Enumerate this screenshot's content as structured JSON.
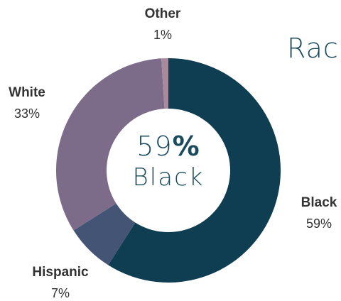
{
  "header": {
    "title_fragment": "Rac"
  },
  "center_label": {
    "value": "59",
    "unit": "%",
    "category": "Black"
  },
  "chart_data": {
    "type": "pie",
    "donut": true,
    "categories": [
      "Black",
      "Hispanic",
      "White",
      "Other"
    ],
    "values": [
      59,
      7,
      33,
      1
    ],
    "value_labels": [
      "59%",
      "7%",
      "33%",
      "1%"
    ],
    "colors": [
      "#0f3d52",
      "#445474",
      "#7c6b89",
      "#a88a9c"
    ],
    "start_angle_deg": 0,
    "legend": "none"
  }
}
